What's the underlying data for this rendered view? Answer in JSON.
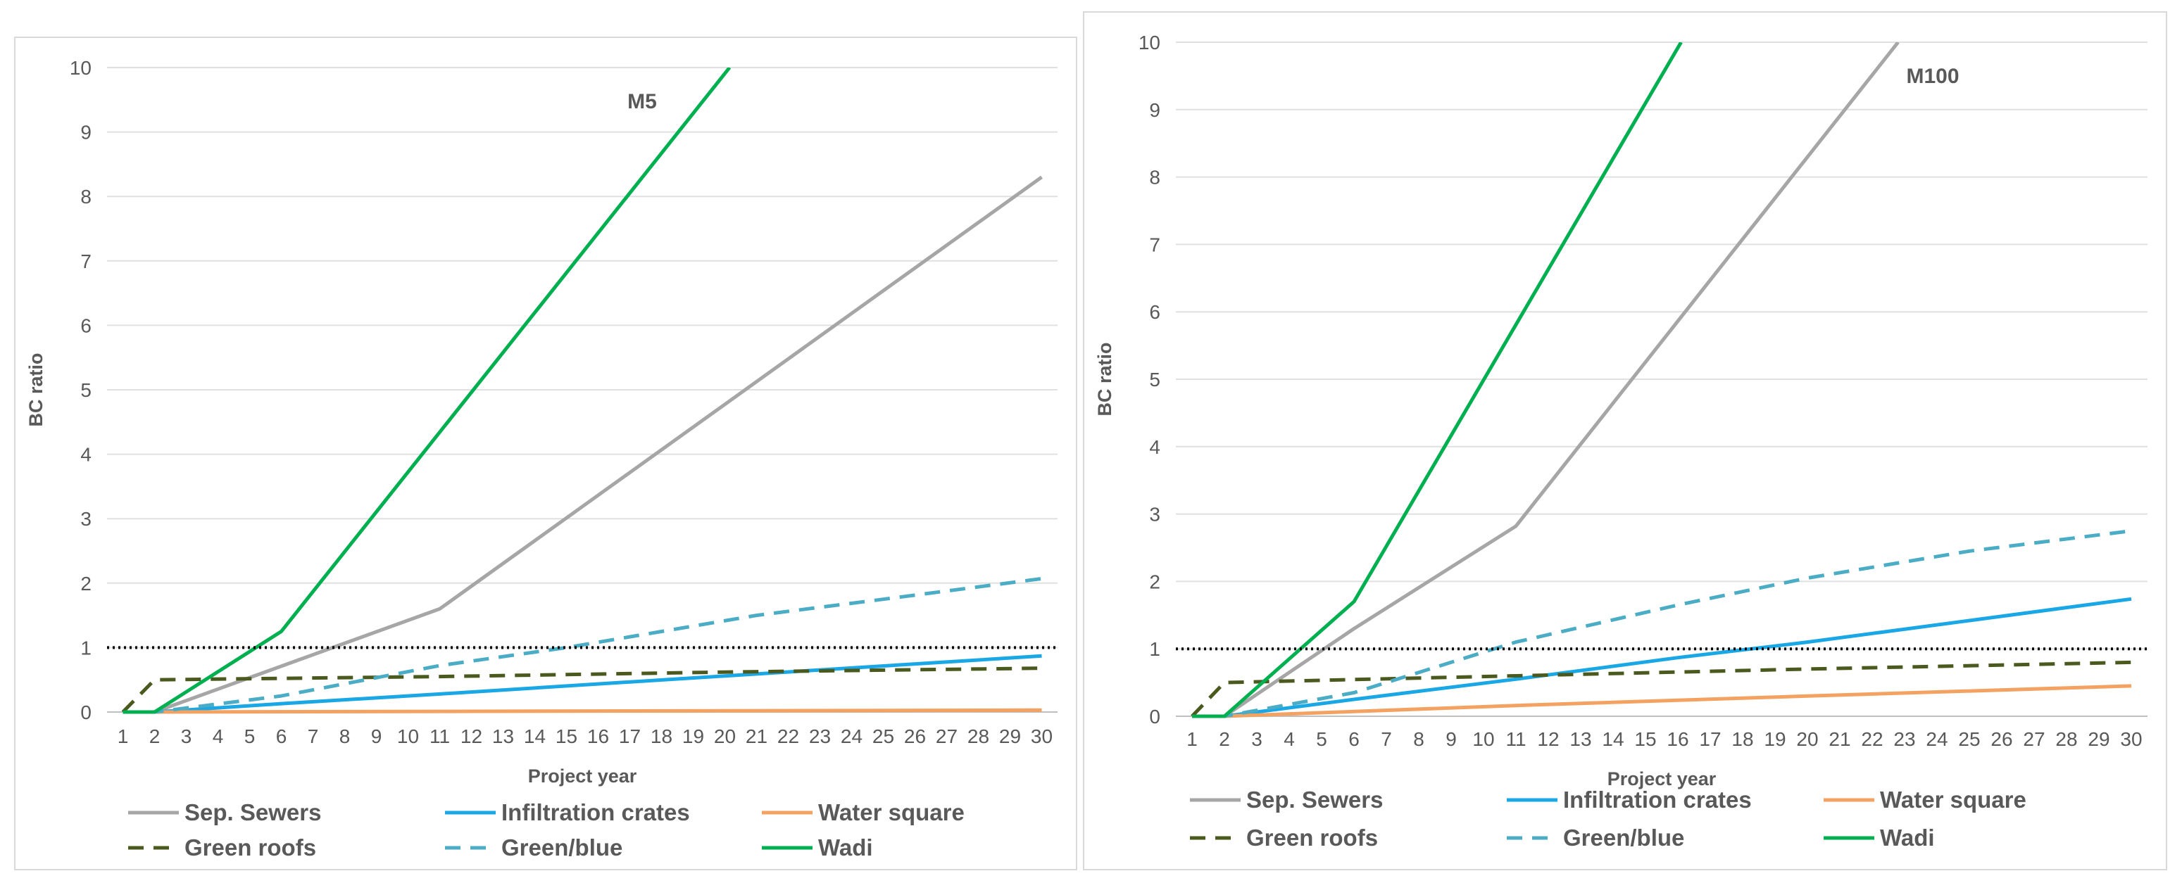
{
  "chart_data": [
    {
      "type": "line",
      "title": "M5",
      "xlabel": "Project year",
      "ylabel": "BC ratio",
      "ylim": [
        0,
        10
      ],
      "yticks": [
        "0",
        "1",
        "2",
        "3",
        "4",
        "5",
        "6",
        "7",
        "8",
        "9",
        "10"
      ],
      "categories": [
        "1",
        "2",
        "3",
        "4",
        "5",
        "6",
        "7",
        "8",
        "9",
        "10",
        "11",
        "12",
        "13",
        "14",
        "15",
        "16",
        "17",
        "18",
        "19",
        "20",
        "21",
        "22",
        "23",
        "24",
        "25",
        "26",
        "27",
        "28",
        "29",
        "30"
      ],
      "reference_line": 1,
      "series": [
        {
          "name": "Sep. Sewers",
          "color": "#a6a6a6",
          "dash": "solid",
          "points": [
            [
              1,
              0
            ],
            [
              2,
              0
            ],
            [
              11,
              1.6
            ],
            [
              30,
              8.3
            ]
          ]
        },
        {
          "name": "Infiltration crates",
          "color": "#1aa7e6",
          "dash": "solid",
          "points": [
            [
              1,
              0
            ],
            [
              2,
              0
            ],
            [
              6,
              0.13
            ],
            [
              11,
              0.28
            ],
            [
              20,
              0.56
            ],
            [
              30,
              0.87
            ]
          ]
        },
        {
          "name": "Water square",
          "color": "#f4a261",
          "dash": "solid",
          "points": [
            [
              1,
              0
            ],
            [
              2,
              0
            ],
            [
              11,
              0.01
            ],
            [
              30,
              0.03
            ]
          ]
        },
        {
          "name": "Green roofs",
          "color": "#4a5a1e",
          "dash": "dashed",
          "points": [
            [
              1,
              0
            ],
            [
              2,
              0.5
            ],
            [
              11,
              0.55
            ],
            [
              20,
              0.62
            ],
            [
              30,
              0.68
            ]
          ]
        },
        {
          "name": "Green/blue",
          "color": "#4bacc6",
          "dash": "dashed",
          "points": [
            [
              1,
              0
            ],
            [
              2,
              0
            ],
            [
              6,
              0.25
            ],
            [
              11,
              0.72
            ],
            [
              15,
              1.0
            ],
            [
              18,
              1.25
            ],
            [
              21,
              1.5
            ],
            [
              25,
              1.75
            ],
            [
              30,
              2.07
            ]
          ]
        },
        {
          "name": "Wadi",
          "color": "#00b050",
          "dash": "solid",
          "points": [
            [
              1,
              0
            ],
            [
              2,
              0
            ],
            [
              6,
              1.25
            ],
            [
              20.15,
              10
            ]
          ]
        }
      ],
      "legend": [
        [
          "Sep. Sewers",
          "Infiltration crates",
          "Water square"
        ],
        [
          "Green roofs",
          "Green/blue",
          "Wadi"
        ]
      ]
    },
    {
      "type": "line",
      "title": "M100",
      "xlabel": "Project year",
      "ylabel": "BC ratio",
      "ylim": [
        0,
        10
      ],
      "yticks": [
        "0",
        "1",
        "2",
        "3",
        "4",
        "5",
        "6",
        "7",
        "8",
        "9",
        "10"
      ],
      "categories": [
        "1",
        "2",
        "3",
        "4",
        "5",
        "6",
        "7",
        "8",
        "9",
        "10",
        "11",
        "12",
        "13",
        "14",
        "15",
        "16",
        "17",
        "18",
        "19",
        "20",
        "21",
        "22",
        "23",
        "24",
        "25",
        "26",
        "27",
        "28",
        "29",
        "30"
      ],
      "reference_line": 1,
      "series": [
        {
          "name": "Sep. Sewers",
          "color": "#a6a6a6",
          "dash": "solid",
          "points": [
            [
              1,
              0
            ],
            [
              2,
              0
            ],
            [
              6,
              1.3
            ],
            [
              11,
              2.82
            ],
            [
              22.8,
              10
            ]
          ]
        },
        {
          "name": "Infiltration crates",
          "color": "#1aa7e6",
          "dash": "solid",
          "points": [
            [
              1,
              0
            ],
            [
              2,
              0
            ],
            [
              6,
              0.25
            ],
            [
              11,
              0.55
            ],
            [
              16,
              0.87
            ],
            [
              20,
              1.1
            ],
            [
              25,
              1.42
            ],
            [
              30,
              1.74
            ]
          ]
        },
        {
          "name": "Water square",
          "color": "#f4a261",
          "dash": "solid",
          "points": [
            [
              1,
              0
            ],
            [
              2,
              0
            ],
            [
              6,
              0.07
            ],
            [
              11,
              0.16
            ],
            [
              20,
              0.3
            ],
            [
              30,
              0.45
            ]
          ]
        },
        {
          "name": "Green roofs",
          "color": "#4a5a1e",
          "dash": "dashed",
          "points": [
            [
              1,
              0
            ],
            [
              2,
              0.5
            ],
            [
              11,
              0.6
            ],
            [
              20,
              0.7
            ],
            [
              30,
              0.8
            ]
          ]
        },
        {
          "name": "Green/blue",
          "color": "#4bacc6",
          "dash": "dashed",
          "points": [
            [
              1,
              0
            ],
            [
              2,
              0
            ],
            [
              6,
              0.35
            ],
            [
              11,
              1.1
            ],
            [
              16,
              1.65
            ],
            [
              20,
              2.05
            ],
            [
              25,
              2.45
            ],
            [
              30,
              2.75
            ]
          ]
        },
        {
          "name": "Wadi",
          "color": "#00b050",
          "dash": "solid",
          "points": [
            [
              1,
              0
            ],
            [
              2,
              0
            ],
            [
              6,
              1.7
            ],
            [
              16.1,
              10
            ]
          ]
        }
      ],
      "legend": [
        [
          "Sep. Sewers",
          "Infiltration crates",
          "Water square"
        ],
        [
          "Green roofs",
          "Green/blue",
          "Wadi"
        ]
      ]
    }
  ]
}
